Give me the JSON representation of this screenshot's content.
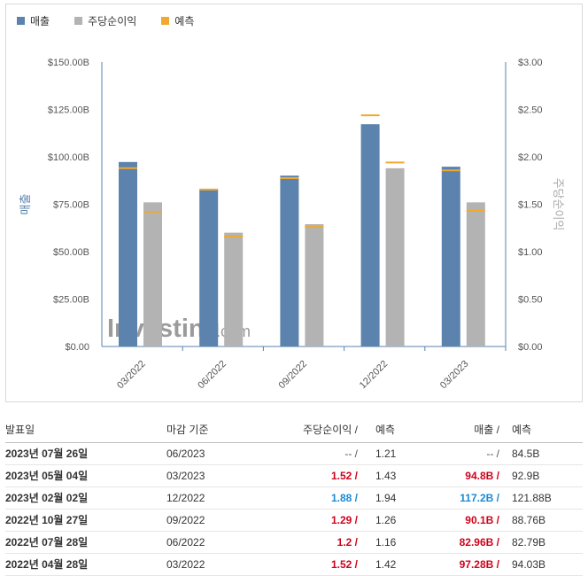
{
  "legend": {
    "revenue": "매출",
    "eps": "주당순이익",
    "forecast": "예측"
  },
  "colors": {
    "revenue": "#5b83ad",
    "eps": "#b3b3b3",
    "forecast": "#f0a830",
    "red": "#d0021b",
    "blue": "#1a8ad6"
  },
  "watermark": {
    "brand": "Investing",
    "suffix": ".com"
  },
  "chart_data": {
    "type": "bar",
    "categories": [
      "03/2022",
      "06/2022",
      "09/2022",
      "12/2022",
      "03/2023"
    ],
    "series": [
      {
        "name": "매출",
        "axis": "left",
        "values": [
          97.28,
          82.96,
          90.1,
          117.2,
          94.8
        ],
        "forecast": [
          94.03,
          82.79,
          88.76,
          121.88,
          92.9
        ]
      },
      {
        "name": "주당순이익",
        "axis": "right",
        "values": [
          1.52,
          1.2,
          1.29,
          1.88,
          1.52
        ],
        "forecast": [
          1.42,
          1.16,
          1.26,
          1.94,
          1.43
        ]
      }
    ],
    "ylabel": "매출",
    "y2label": "주당순이익",
    "ylim": [
      0,
      150
    ],
    "y2lim": [
      0,
      3
    ],
    "y_ticks": [
      "$0.00",
      "$25.00B",
      "$50.00B",
      "$75.00B",
      "$100.00B",
      "$125.00B",
      "$150.00B"
    ],
    "y2_ticks": [
      "$0.00",
      "$0.50",
      "$1.00",
      "$1.50",
      "$2.00",
      "$2.50",
      "$3.00"
    ],
    "grid": false,
    "legend_position": "top-left"
  },
  "table": {
    "headers": {
      "date": "발표일",
      "period": "마감 기준",
      "eps": "주당순이익 /",
      "eps_forecast": "예측",
      "revenue": "매출 /",
      "revenue_forecast": "예측"
    },
    "rows": [
      {
        "date": "2023년 07월 26일",
        "period": "06/2023",
        "eps": "-- /",
        "eps_class": "gray",
        "eps_forecast": "1.21",
        "revenue": "-- /",
        "revenue_class": "gray",
        "revenue_forecast": "84.5B"
      },
      {
        "date": "2023년 05월 04일",
        "period": "03/2023",
        "eps": "1.52 /",
        "eps_class": "red",
        "eps_forecast": "1.43",
        "revenue": "94.8B /",
        "revenue_class": "red",
        "revenue_forecast": "92.9B"
      },
      {
        "date": "2023년 02월 02일",
        "period": "12/2022",
        "eps": "1.88 /",
        "eps_class": "blue",
        "eps_forecast": "1.94",
        "revenue": "117.2B /",
        "revenue_class": "blue",
        "revenue_forecast": "121.88B"
      },
      {
        "date": "2022년 10월 27일",
        "period": "09/2022",
        "eps": "1.29 /",
        "eps_class": "red",
        "eps_forecast": "1.26",
        "revenue": "90.1B /",
        "revenue_class": "red",
        "revenue_forecast": "88.76B"
      },
      {
        "date": "2022년 07월 28일",
        "period": "06/2022",
        "eps": "1.2 /",
        "eps_class": "red",
        "eps_forecast": "1.16",
        "revenue": "82.96B /",
        "revenue_class": "red",
        "revenue_forecast": "82.79B"
      },
      {
        "date": "2022년 04월 28일",
        "period": "03/2022",
        "eps": "1.52 /",
        "eps_class": "red",
        "eps_forecast": "1.42",
        "revenue": "97.28B /",
        "revenue_class": "red",
        "revenue_forecast": "94.03B"
      }
    ]
  }
}
